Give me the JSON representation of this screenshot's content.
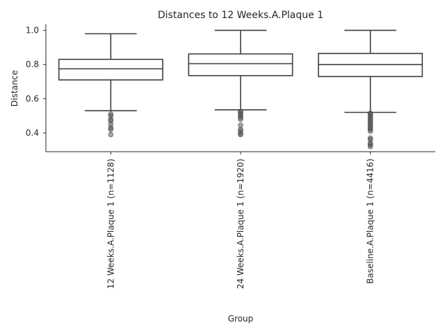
{
  "chart_data": {
    "type": "box",
    "title": "Distances to 12 Weeks.A.Plaque 1",
    "xlabel": "Group",
    "ylabel": "Distance",
    "ylim": [
      0.29,
      1.035
    ],
    "yticks": [
      "0.4",
      "0.6",
      "0.8",
      "1.0"
    ],
    "ytick_values": [
      0.4,
      0.6,
      0.8,
      1.0
    ],
    "grid": false,
    "categories": [
      "12 Weeks.A.Plaque 1 (n=1128)",
      "24 Weeks.A.Plaque 1 (n=1920)",
      "Baseline.A.Plaque 1 (n=4416)"
    ],
    "boxes": [
      {
        "whisker_low": 0.53,
        "q1": 0.71,
        "median": 0.775,
        "q3": 0.83,
        "whisker_high": 0.98,
        "outliers": [
          0.51,
          0.5,
          0.48,
          0.47,
          0.45,
          0.43,
          0.42,
          0.39
        ]
      },
      {
        "whisker_low": 0.535,
        "q1": 0.735,
        "median": 0.805,
        "q3": 0.862,
        "whisker_high": 1.0,
        "outliers": [
          0.525,
          0.52,
          0.51,
          0.5,
          0.49,
          0.48,
          0.445,
          0.42,
          0.41,
          0.395,
          0.39
        ]
      },
      {
        "whisker_low": 0.52,
        "q1": 0.73,
        "median": 0.8,
        "q3": 0.865,
        "whisker_high": 1.0,
        "outliers": [
          0.515,
          0.51,
          0.5,
          0.49,
          0.48,
          0.47,
          0.46,
          0.45,
          0.44,
          0.43,
          0.42,
          0.41,
          0.37,
          0.36,
          0.34,
          0.33,
          0.32
        ]
      }
    ],
    "colors": {
      "box_edge": "#3d3d3d",
      "outlier": "#555555",
      "axis": "#262626"
    }
  }
}
